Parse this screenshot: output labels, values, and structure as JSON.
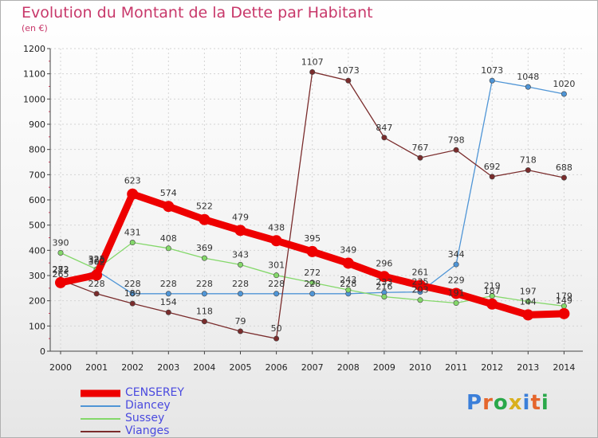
{
  "header": {
    "title": "Evolution du Montant de la Dette par Habitant",
    "subtitle": "(en €)"
  },
  "brand": {
    "text": "Proxiti",
    "letter_colors": [
      "#3b7fd9",
      "#e5662c",
      "#2aa84a",
      "#d9b01e",
      "#3b7fd9",
      "#e5662c",
      "#2aa84a"
    ]
  },
  "chart_data": {
    "type": "line",
    "title": "Evolution du Montant de la Dette par Habitant",
    "subtitle": "(en €)",
    "xlabel": "",
    "ylabel": "",
    "x": [
      "2000",
      "2001",
      "2002",
      "2003",
      "2004",
      "2005",
      "2006",
      "2007",
      "2008",
      "2009",
      "2010",
      "2011",
      "2012",
      "2013",
      "2014"
    ],
    "y_ticks": [
      0,
      100,
      200,
      300,
      400,
      500,
      600,
      700,
      800,
      900,
      1000,
      1100,
      1200
    ],
    "ylim": [
      0,
      1200
    ],
    "grid": true,
    "legend_position": "bottom-left",
    "series": [
      {
        "name": "CENSEREY",
        "color": "#ee0000",
        "thick": true,
        "values": [
          272,
          302,
          623,
          574,
          522,
          479,
          438,
          395,
          349,
          296,
          261,
          229,
          187,
          144,
          149
        ],
        "labels": [
          "272",
          "302",
          "623",
          "574",
          "522",
          "479",
          "438",
          "395",
          "349",
          "296",
          "261",
          "229",
          "187",
          "144",
          "149"
        ]
      },
      {
        "name": "Diancey",
        "color": "#4f95d6",
        "thick": false,
        "values": [
          265,
          320,
          228,
          228,
          228,
          228,
          228,
          228,
          228,
          233,
          235,
          344,
          1073,
          1048,
          1020
        ],
        "labels": [
          "265",
          "320",
          "228",
          "228",
          "228",
          "228",
          "228",
          "228",
          "228",
          "233",
          "235",
          "344",
          "1073",
          "1048",
          "1020"
        ]
      },
      {
        "name": "Sussey",
        "color": "#84d86a",
        "thick": false,
        "values": [
          390,
          325,
          431,
          408,
          369,
          343,
          301,
          272,
          243,
          216,
          203,
          191,
          219,
          197,
          179
        ],
        "labels": [
          "390",
          "325",
          "431",
          "408",
          "369",
          "343",
          "301",
          "272",
          "243",
          "216",
          "203",
          "191",
          "219",
          "197",
          "179"
        ]
      },
      {
        "name": "Vianges",
        "color": "#7a2c2c",
        "thick": false,
        "values": [
          283,
          228,
          189,
          154,
          118,
          79,
          50,
          1107,
          1073,
          847,
          767,
          798,
          692,
          718,
          688
        ],
        "labels": [
          "283",
          "228",
          "189",
          "154",
          "118",
          "79",
          "50",
          "1107",
          "1073",
          "847",
          "767",
          "798",
          "692",
          "718",
          "688"
        ]
      }
    ]
  }
}
